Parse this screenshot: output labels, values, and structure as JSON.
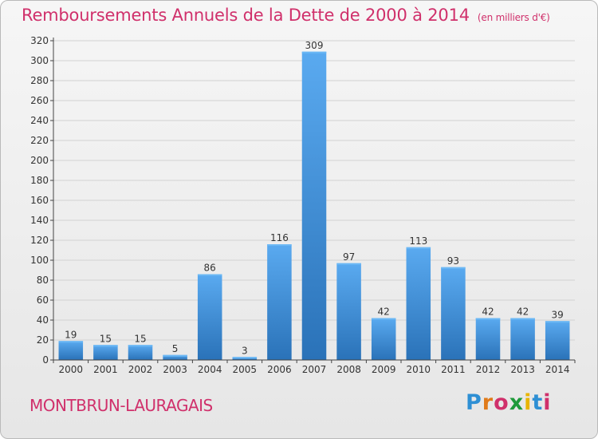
{
  "title": "Remboursements Annuels de la Dette de 2000 à 2014",
  "unit_note": "(en milliers d'€)",
  "place": "MONTBRUN-LAURAGAIS",
  "logo": {
    "letters": [
      "P",
      "r",
      "o",
      "x",
      "i",
      "t",
      "i"
    ],
    "colors": [
      "#2e8fd4",
      "#e07a1a",
      "#d0306b",
      "#1e9a3a",
      "#e8b400",
      "#2e8fd4",
      "#d0306b"
    ]
  },
  "colors": {
    "bar": "#3b8ed6",
    "bar_dark": "#2a6fb0",
    "text": "#d0306b"
  },
  "chart_data": {
    "type": "bar",
    "categories": [
      "2000",
      "2001",
      "2002",
      "2003",
      "2004",
      "2005",
      "2006",
      "2007",
      "2008",
      "2009",
      "2010",
      "2011",
      "2012",
      "2013",
      "2014"
    ],
    "values": [
      19,
      15,
      15,
      5,
      86,
      3,
      116,
      309,
      97,
      42,
      113,
      93,
      42,
      42,
      39
    ],
    "ylim": [
      0,
      320
    ],
    "yticks": [
      0,
      20,
      40,
      60,
      80,
      100,
      120,
      140,
      160,
      180,
      200,
      220,
      240,
      260,
      280,
      300,
      320
    ],
    "grid": true
  }
}
